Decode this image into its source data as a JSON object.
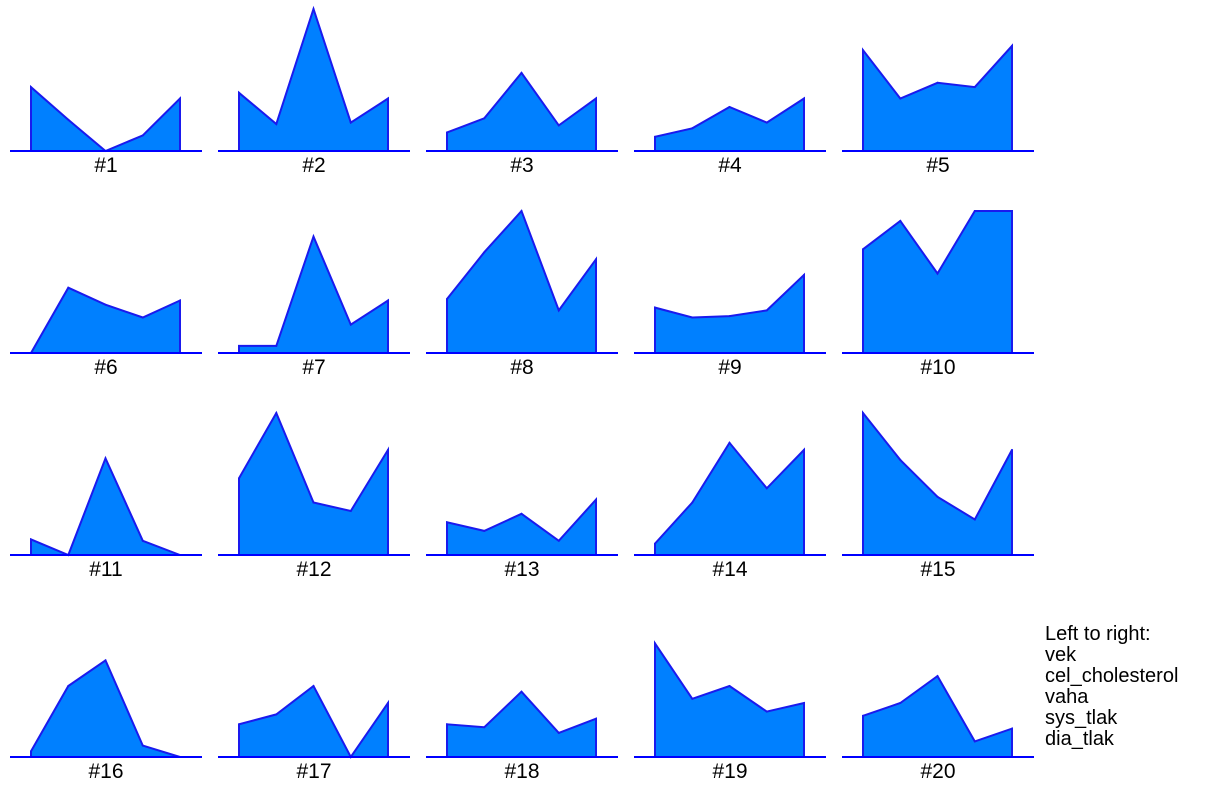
{
  "chart_data": {
    "type": "area",
    "description_note": "",
    "variables": [
      "vek",
      "cel_cholesterol",
      "vaha",
      "sys_tlak",
      "dia_tlak"
    ],
    "panels": [
      {
        "label": "#1",
        "values": [
          0.45,
          0.22,
          0.0,
          0.11,
          0.37
        ]
      },
      {
        "label": "#2",
        "values": [
          0.41,
          0.19,
          1.0,
          0.2,
          0.37
        ]
      },
      {
        "label": "#3",
        "values": [
          0.13,
          0.23,
          0.55,
          0.18,
          0.37
        ]
      },
      {
        "label": "#4",
        "values": [
          0.1,
          0.16,
          0.31,
          0.2,
          0.37
        ]
      },
      {
        "label": "#5",
        "values": [
          0.71,
          0.37,
          0.48,
          0.45,
          0.74
        ]
      },
      {
        "label": "#6",
        "values": [
          0.0,
          0.46,
          0.34,
          0.25,
          0.37
        ]
      },
      {
        "label": "#7",
        "values": [
          0.05,
          0.05,
          0.82,
          0.2,
          0.37
        ]
      },
      {
        "label": "#8",
        "values": [
          0.38,
          0.71,
          1.0,
          0.3,
          0.66
        ]
      },
      {
        "label": "#9",
        "values": [
          0.32,
          0.25,
          0.26,
          0.3,
          0.55
        ]
      },
      {
        "label": "#10",
        "values": [
          0.73,
          0.93,
          0.56,
          1.0,
          1.0
        ]
      },
      {
        "label": "#11",
        "values": [
          0.11,
          0.0,
          0.68,
          0.1,
          0.0
        ]
      },
      {
        "label": "#12",
        "values": [
          0.54,
          1.0,
          0.37,
          0.31,
          0.74
        ]
      },
      {
        "label": "#13",
        "values": [
          0.23,
          0.17,
          0.29,
          0.1,
          0.39
        ]
      },
      {
        "label": "#14",
        "values": [
          0.08,
          0.37,
          0.79,
          0.47,
          0.74
        ]
      },
      {
        "label": "#15",
        "values": [
          1.0,
          0.67,
          0.41,
          0.25,
          0.74
        ]
      },
      {
        "label": "#16",
        "values": [
          0.04,
          0.5,
          0.68,
          0.08,
          0.0
        ]
      },
      {
        "label": "#17",
        "values": [
          0.23,
          0.3,
          0.5,
          0.0,
          0.38
        ]
      },
      {
        "label": "#18",
        "values": [
          0.23,
          0.21,
          0.46,
          0.17,
          0.27
        ]
      },
      {
        "label": "#19",
        "values": [
          0.8,
          0.41,
          0.5,
          0.32,
          0.38
        ]
      },
      {
        "label": "#20",
        "values": [
          0.29,
          0.38,
          0.57,
          0.11,
          0.2
        ]
      }
    ],
    "ylim": [
      0,
      1
    ],
    "fill_color": "#0080ff",
    "stroke_color": "#1a1aee",
    "baseline_color": "#0000ff",
    "grid": false
  },
  "legend": {
    "title": "Left to right:",
    "items": [
      "vek",
      "cel_cholesterol",
      "vaha",
      "sys_tlak",
      "dia_tlak"
    ]
  }
}
